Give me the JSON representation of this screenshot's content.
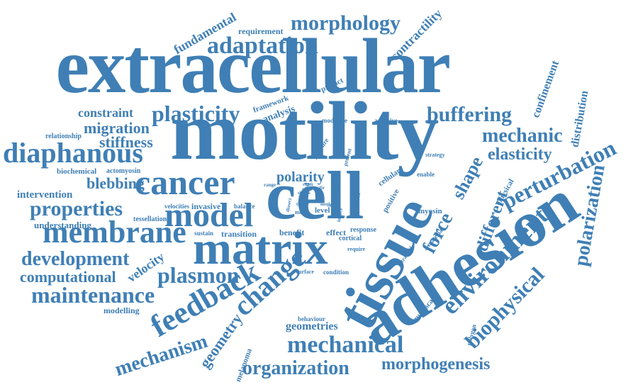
{
  "colors": {
    "word": "#3f7fb5",
    "background": "#ffffff"
  },
  "words": {
    "extracellular": "extracellular",
    "motility": "motility",
    "adhesion": "adhesion",
    "tissue": "tissue",
    "cell": "cell",
    "matrix": "matrix",
    "cancer": "cancer",
    "membrane": "membrane",
    "model": "model",
    "diaphanous": "diaphanous",
    "plasticity": "plasticity",
    "adaptation": "adaptation",
    "morphology": "morphology",
    "buffering": "buffering",
    "mechanic": "mechanic",
    "elasticity": "elasticity",
    "perturbation": "perturbation",
    "environment": "environment",
    "polarization": "polarization",
    "biophysical": "biophysical",
    "feedback": "feedback",
    "change": "change",
    "mechanical": "mechanical",
    "organization": "organization",
    "morphogenesis": "morphogenesis",
    "maintenance": "maintenance",
    "plasmon": "plasmon",
    "development": "development",
    "computational": "computational",
    "properties": "properties",
    "mechanism": "mechanism",
    "geometry": "geometry",
    "geometries": "geometries",
    "force": "force",
    "shape": "shape",
    "different": "different",
    "migration": "migration",
    "stiffness": "stiffness",
    "constraint": "constraint",
    "blebbing": "blebbing",
    "polarity": "polarity",
    "fundamental": "fundamental",
    "contractility": "contractility",
    "confinement": "confinement",
    "distribution": "distribution",
    "velocity": "velocity",
    "intervention": "intervention",
    "understanding": "understanding",
    "modelling": "modelling",
    "tessellation": "tessellation",
    "requirement": "requirement",
    "relationship": "relationship",
    "biochemical": "biochemical",
    "actomyosin": "actomyosin",
    "framework": "framework",
    "analysis": "analysis",
    "predict": "predict",
    "modulate": "modulate",
    "adhesive": "adhesive",
    "pressure": "pressure",
    "lamellipod": "lamellipod",
    "strategy": "strategy",
    "enable": "enable",
    "physical": "physical",
    "cellular": "cellular",
    "positive": "positive",
    "myosin": "myosin",
    "material": "material",
    "intravital": "intravital",
    "multiscale": "multiscale",
    "polygon": "polygon",
    "behaviour": "behaviour",
    "melanoma": "melanoma",
    "velocities": "velocities",
    "invasive": "invasive",
    "balance": "balance",
    "sustain": "sustain",
    "transition": "transition",
    "benefit": "benefit",
    "effect": "effect",
    "response": "response",
    "cortical": "cortical",
    "require": "require",
    "surface": "surface",
    "condition": "condition",
    "level": "level",
    "drive": "drive",
    "mode": "mode",
    "refine": "refine",
    "induce": "induce",
    "buffer": "buffer",
    "present": "present",
    "range": "range",
    "result": "result",
    "vitro": "vitro",
    "stir": "stir",
    "shift": "shift",
    "cost": "cost",
    "actin": "actin",
    "motile": "motile",
    "cell_small": "cell",
    "dissect": "dissect"
  }
}
